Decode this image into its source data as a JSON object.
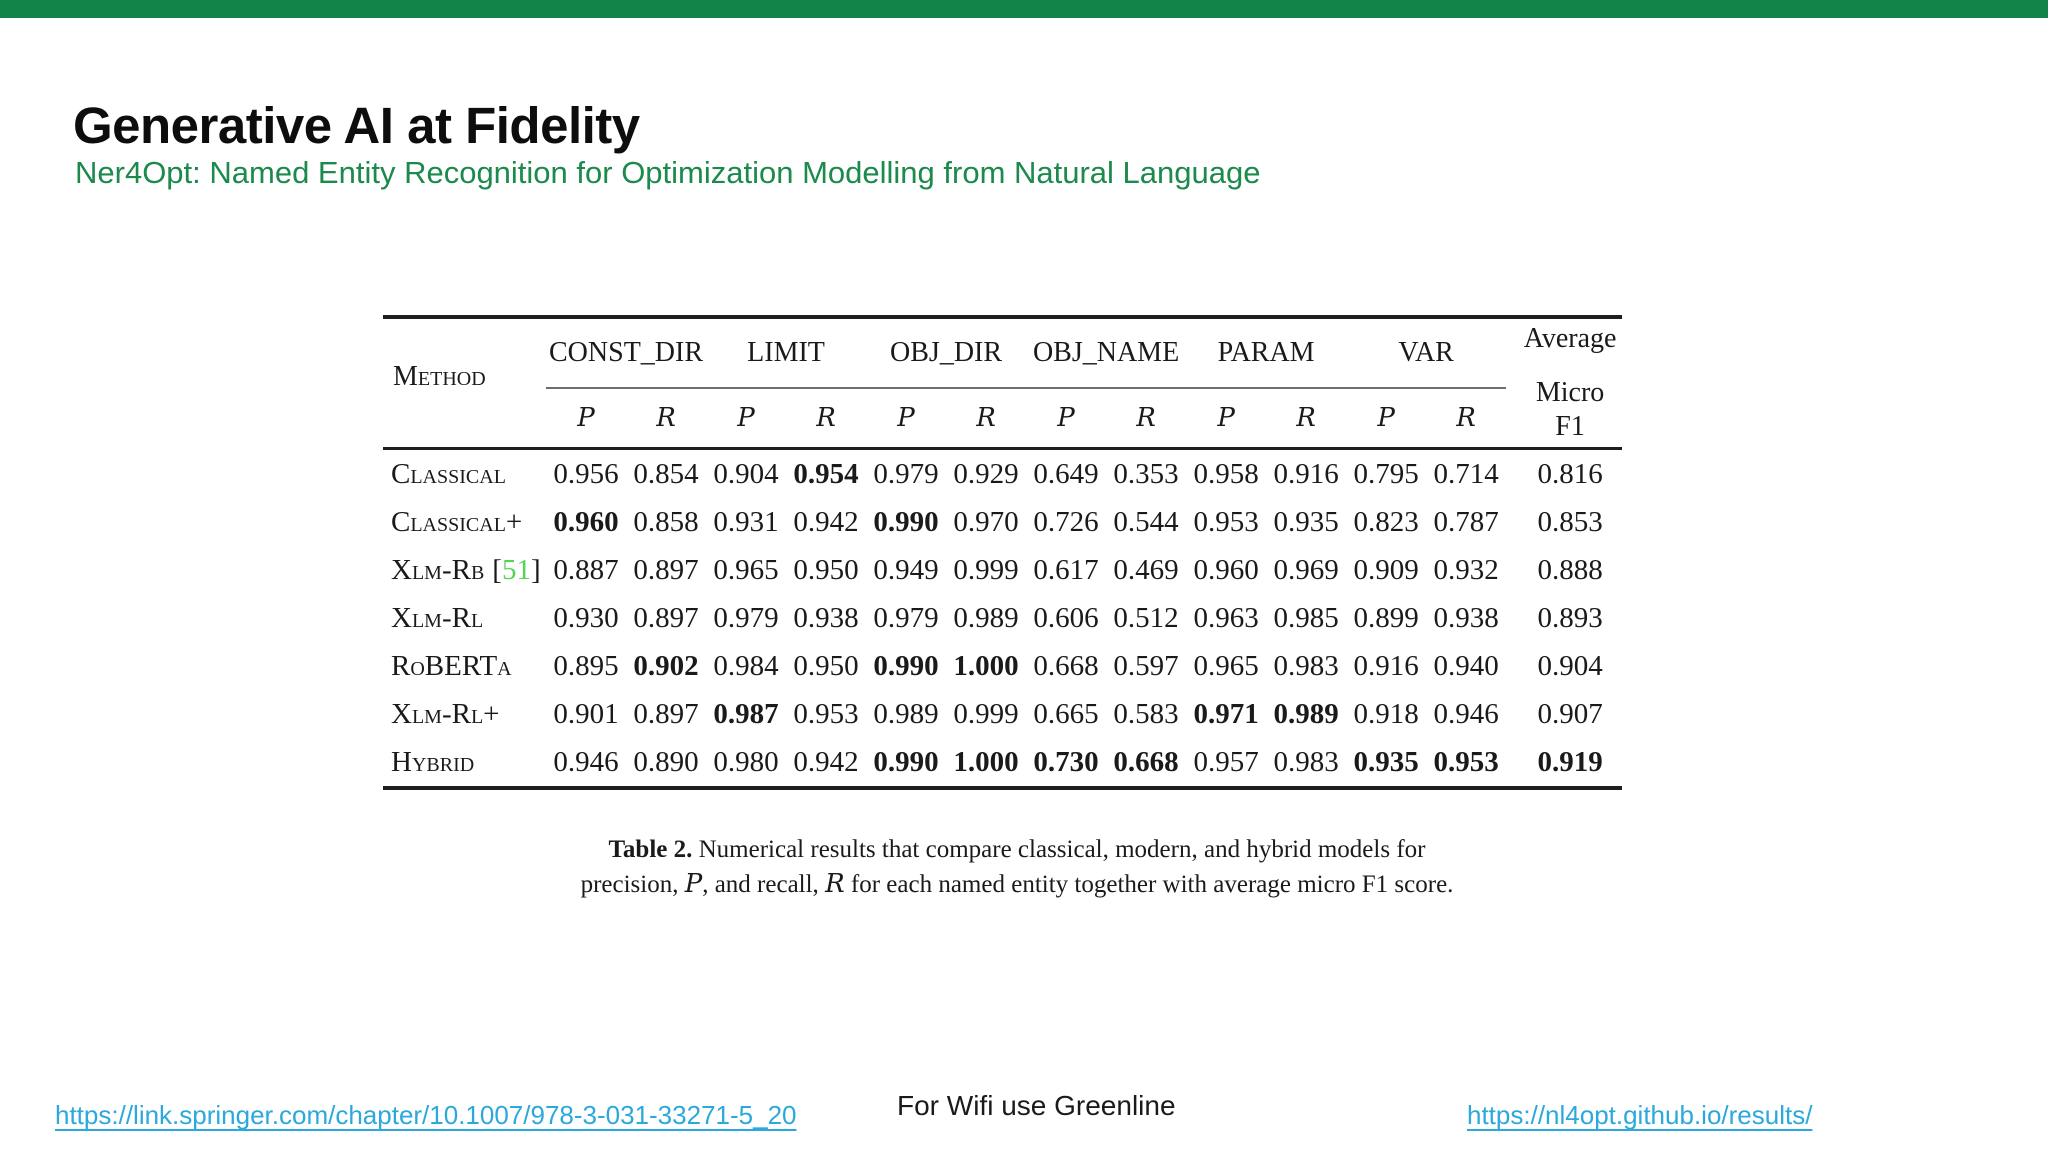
{
  "slide": {
    "title": "Generative AI at Fidelity",
    "subtitle": "Ner4Opt: Named Entity Recognition for Optimization Modelling from Natural Language"
  },
  "colors": {
    "green_bar": "#138449",
    "green_subtitle": "#1b8a4c",
    "citation_green": "#53d455",
    "link_blue": "#2ba9dc"
  },
  "table": {
    "method_header": "Method",
    "groups": [
      "CONST_DIR",
      "LIMIT",
      "OBJ_DIR",
      "OBJ_NAME",
      "PARAM",
      "VAR"
    ],
    "avg_header_line1": "Average",
    "avg_header_line2": "Micro F1",
    "symbols": {
      "p": "P",
      "r": "R"
    },
    "cite_open": "[",
    "cite_close": "]",
    "rows": [
      {
        "method": "Classical",
        "cite": "",
        "values": [
          "0.956",
          "0.854",
          "0.904",
          "0.954",
          "0.979",
          "0.929",
          "0.649",
          "0.353",
          "0.958",
          "0.916",
          "0.795",
          "0.714",
          "0.816"
        ],
        "bold": [
          3
        ]
      },
      {
        "method": "Classical+",
        "cite": "",
        "values": [
          "0.960",
          "0.858",
          "0.931",
          "0.942",
          "0.990",
          "0.970",
          "0.726",
          "0.544",
          "0.953",
          "0.935",
          "0.823",
          "0.787",
          "0.853"
        ],
        "bold": [
          0,
          4
        ]
      },
      {
        "method": "Xlm-Rb",
        "cite": "51",
        "values": [
          "0.887",
          "0.897",
          "0.965",
          "0.950",
          "0.949",
          "0.999",
          "0.617",
          "0.469",
          "0.960",
          "0.969",
          "0.909",
          "0.932",
          "0.888"
        ],
        "bold": []
      },
      {
        "method": "Xlm-Rl",
        "cite": "",
        "values": [
          "0.930",
          "0.897",
          "0.979",
          "0.938",
          "0.979",
          "0.989",
          "0.606",
          "0.512",
          "0.963",
          "0.985",
          "0.899",
          "0.938",
          "0.893"
        ],
        "bold": []
      },
      {
        "method": "RoBERTa",
        "cite": "",
        "values": [
          "0.895",
          "0.902",
          "0.984",
          "0.950",
          "0.990",
          "1.000",
          "0.668",
          "0.597",
          "0.965",
          "0.983",
          "0.916",
          "0.940",
          "0.904"
        ],
        "bold": [
          1,
          4,
          5
        ]
      },
      {
        "method": "Xlm-Rl+",
        "cite": "",
        "values": [
          "0.901",
          "0.897",
          "0.987",
          "0.953",
          "0.989",
          "0.999",
          "0.665",
          "0.583",
          "0.971",
          "0.989",
          "0.918",
          "0.946",
          "0.907"
        ],
        "bold": [
          2,
          8,
          9
        ]
      },
      {
        "method": "Hybrid",
        "cite": "",
        "values": [
          "0.946",
          "0.890",
          "0.980",
          "0.942",
          "0.990",
          "1.000",
          "0.730",
          "0.668",
          "0.957",
          "0.983",
          "0.935",
          "0.953",
          "0.919"
        ],
        "bold": [
          4,
          5,
          6,
          7,
          10,
          11,
          12
        ]
      }
    ],
    "caption": {
      "label": "Table 2.",
      "line1_rest": " Numerical results that compare classical, modern, and hybrid models for",
      "line2_a": "precision, ",
      "line2_p": "P",
      "line2_b": ", and recall, ",
      "line2_r": "R",
      "line2_c": " for each named entity together with average micro F1 score."
    }
  },
  "footer": {
    "left_link": "https://link.springer.com/chapter/10.1007/978-3-031-33271-5_20",
    "center_text": "For Wifi use Greenline",
    "right_link": "https://nl4opt.github.io/results/"
  }
}
